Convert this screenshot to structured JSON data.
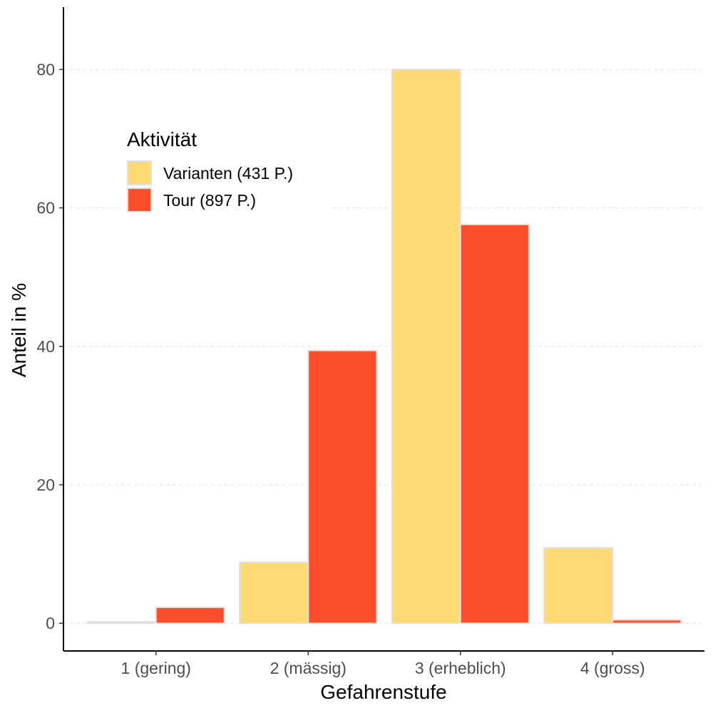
{
  "chart_data": {
    "type": "bar",
    "categories": [
      "1 (gering)",
      "2 (mässig)",
      "3 (erheblich)",
      "4 (gross)"
    ],
    "series": [
      {
        "name": "Varianten (431 P.)",
        "values": [
          0.2,
          8.8,
          80.0,
          10.9
        ],
        "color": "#FED976"
      },
      {
        "name": "Tour (897 P.)",
        "values": [
          2.3,
          39.4,
          57.6,
          0.5
        ],
        "color": "#FC4E2A"
      }
    ],
    "xlabel": "Gefahrenstufe",
    "ylabel": "Anteil in %",
    "ylim": [
      -4,
      89
    ],
    "yticks": [
      0,
      20,
      40,
      60,
      80
    ],
    "grid": "horizontal-dashed",
    "legend": {
      "title": "Aktivität",
      "placement": "top-left"
    },
    "bar_border_color": "#e0e0e0"
  }
}
